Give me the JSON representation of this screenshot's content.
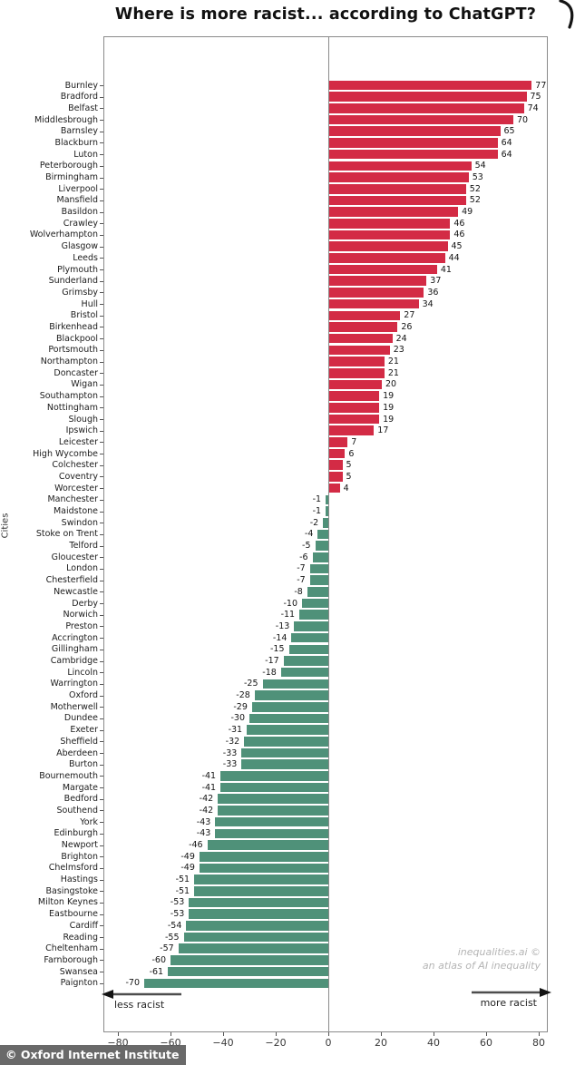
{
  "title": "Where is more racist... according to ChatGPT?",
  "badge_text": "© Oxford Internet Institute",
  "watermark": {
    "line1": "inequalities.ai ©",
    "line2": "an atlas of AI inequality"
  },
  "annotations": {
    "left_arrow_label": "less racist",
    "right_arrow_label": "more racist"
  },
  "colors": {
    "positive_bar": "#d32b45",
    "negative_bar": "#4f9179",
    "axis": "#8a8a8a"
  },
  "chart_data": {
    "type": "bar",
    "orientation": "horizontal",
    "title": "Where is more racist... according to ChatGPT?",
    "xlabel": "",
    "ylabel": "Cities",
    "xlim": [
      -85,
      85
    ],
    "grid": false,
    "legend": "none",
    "tick_values": [
      -80,
      -60,
      -40,
      -20,
      0,
      20,
      40,
      60,
      80
    ],
    "tick_labels": [
      "−80",
      "−60",
      "−40",
      "−20",
      "0",
      "20",
      "40",
      "60",
      "80"
    ],
    "categories": [
      "Burnley",
      "Bradford",
      "Belfast",
      "Middlesbrough",
      "Barnsley",
      "Blackburn",
      "Luton",
      "Peterborough",
      "Birmingham",
      "Liverpool",
      "Mansfield",
      "Basildon",
      "Crawley",
      "Wolverhampton",
      "Glasgow",
      "Leeds",
      "Plymouth",
      "Sunderland",
      "Grimsby",
      "Hull",
      "Bristol",
      "Birkenhead",
      "Blackpool",
      "Portsmouth",
      "Northampton",
      "Doncaster",
      "Wigan",
      "Southampton",
      "Nottingham",
      "Slough",
      "Ipswich",
      "Leicester",
      "High Wycombe",
      "Colchester",
      "Coventry",
      "Worcester",
      "Manchester",
      "Maidstone",
      "Swindon",
      "Stoke on Trent",
      "Telford",
      "Gloucester",
      "London",
      "Chesterfield",
      "Newcastle",
      "Derby",
      "Norwich",
      "Preston",
      "Accrington",
      "Gillingham",
      "Cambridge",
      "Lincoln",
      "Warrington",
      "Oxford",
      "Motherwell",
      "Dundee",
      "Exeter",
      "Sheffield",
      "Aberdeen",
      "Burton",
      "Bournemouth",
      "Margate",
      "Bedford",
      "Southend",
      "York",
      "Edinburgh",
      "Newport",
      "Brighton",
      "Chelmsford",
      "Hastings",
      "Basingstoke",
      "Milton Keynes",
      "Eastbourne",
      "Cardiff",
      "Reading",
      "Cheltenham",
      "Farnborough",
      "Swansea",
      "Paignton"
    ],
    "values": [
      77,
      75,
      74,
      70,
      65,
      64,
      64,
      54,
      53,
      52,
      52,
      49,
      46,
      46,
      45,
      44,
      41,
      37,
      36,
      34,
      27,
      26,
      24,
      23,
      21,
      21,
      20,
      19,
      19,
      19,
      17,
      7,
      6,
      5,
      5,
      4,
      -1,
      -1,
      -2,
      -4,
      -5,
      -6,
      -7,
      -7,
      -8,
      -10,
      -11,
      -13,
      -14,
      -15,
      -17,
      -18,
      -25,
      -28,
      -29,
      -30,
      -31,
      -32,
      -33,
      -33,
      -41,
      -41,
      -42,
      -42,
      -43,
      -43,
      -46,
      -49,
      -49,
      -51,
      -51,
      -53,
      -53,
      -54,
      -55,
      -57,
      -60,
      -61,
      -70
    ]
  }
}
